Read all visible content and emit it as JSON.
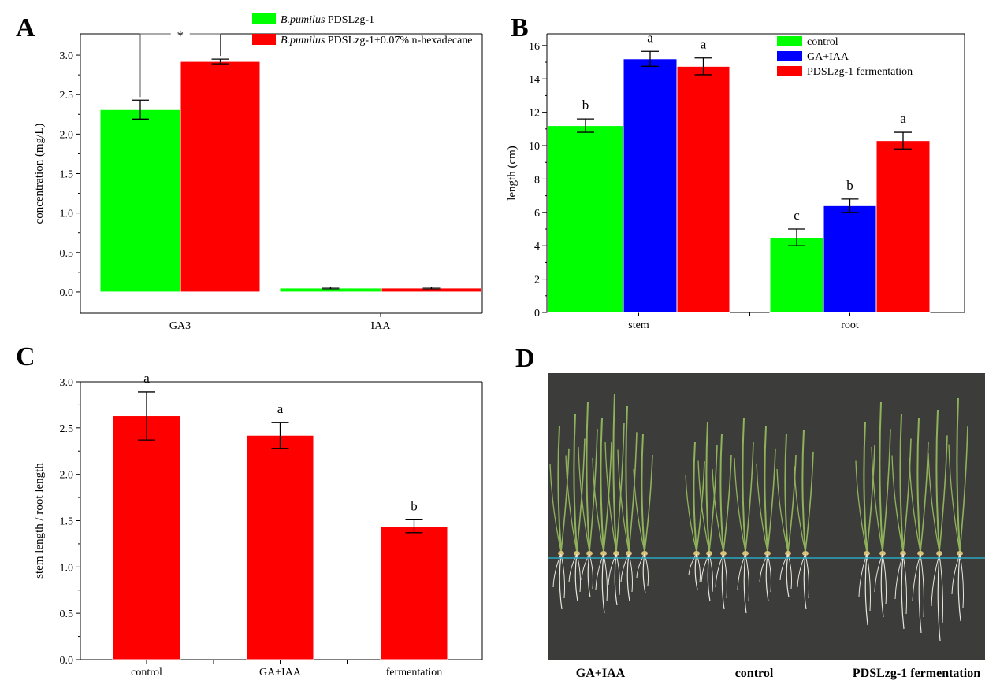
{
  "colors": {
    "green": "#00ff00",
    "blue": "#0000ff",
    "red": "#ff0000",
    "axis": "#000000",
    "photo_bg": "#3c3d3b",
    "photo_line": "#2aa7c2",
    "leaf": "#8fb25a",
    "root": "#e8e6dc"
  },
  "chart_data": [
    {
      "panel": "A",
      "type": "bar",
      "categories": [
        "GA3",
        "IAA"
      ],
      "series": [
        {
          "name_italic": "B.pumilus",
          "name_rest": " PDSLzg-1",
          "color": "#00ff00",
          "values": [
            2.31,
            0.05
          ],
          "errors": [
            0.12,
            0.01
          ]
        },
        {
          "name_italic": "B.pumilus",
          "name_rest": " PDSLzg-1+0.07% n-hexadecane",
          "color": "#ff0000",
          "values": [
            2.92,
            0.05
          ],
          "errors": [
            0.03,
            0.01
          ]
        }
      ],
      "ylabel": "concentration (mg/L)",
      "xlabel": "",
      "ylim": [
        -0.27,
        3.27
      ],
      "yticks": [
        0.0,
        0.5,
        1.0,
        1.5,
        2.0,
        2.5,
        3.0
      ],
      "yticklabels": [
        "0.0",
        "0.5",
        "1.0",
        "1.5",
        "2.0",
        "2.5",
        "3.0"
      ],
      "annotations": [
        {
          "text": "*",
          "between": "GA3 bars"
        }
      ],
      "legend_position": "top-right"
    },
    {
      "panel": "B",
      "type": "bar",
      "categories": [
        "stem",
        "root"
      ],
      "series": [
        {
          "name": "control",
          "color": "#00ff00",
          "values": [
            11.2,
            4.5
          ],
          "errors": [
            0.4,
            0.5
          ],
          "letters": [
            "b",
            "c"
          ]
        },
        {
          "name": "GA+IAA",
          "color": "#0000ff",
          "values": [
            15.2,
            6.4
          ],
          "errors": [
            0.45,
            0.4
          ],
          "letters": [
            "a",
            "b"
          ]
        },
        {
          "name": "PDSLzg-1 fermentation",
          "color": "#ff0000",
          "values": [
            14.75,
            10.3
          ],
          "errors": [
            0.5,
            0.5
          ],
          "letters": [
            "a",
            "a"
          ]
        }
      ],
      "ylabel": "length (cm)",
      "xlabel": "",
      "ylim": [
        0,
        16.7
      ],
      "yticks": [
        0,
        2,
        4,
        6,
        8,
        10,
        12,
        14,
        16
      ],
      "yticklabels": [
        "0",
        "2",
        "4",
        "6",
        "8",
        "10",
        "12",
        "14",
        "16"
      ],
      "legend_position": "top-right"
    },
    {
      "panel": "C",
      "type": "bar",
      "categories": [
        "control",
        "GA+IAA",
        "fermentation"
      ],
      "series": [
        {
          "color": "#ff0000",
          "values": [
            2.63,
            2.42,
            1.44
          ],
          "errors": [
            0.26,
            0.14,
            0.07
          ],
          "letters": [
            "a",
            "a",
            "b"
          ]
        }
      ],
      "ylabel": "stem length / root length",
      "xlabel": "",
      "ylim": [
        0,
        3.0
      ],
      "yticks": [
        0.0,
        0.5,
        1.0,
        1.5,
        2.0,
        2.5,
        3.0
      ],
      "yticklabels": [
        "0.0",
        "0.5",
        "1.0",
        "1.5",
        "2.0",
        "2.5",
        "3.0"
      ]
    }
  ],
  "panel_letters": {
    "a": "A",
    "b": "B",
    "c": "C",
    "d": "D"
  },
  "photo": {
    "captions": [
      "GA+IAA",
      "control",
      "PDSLzg-1 fermentation"
    ]
  }
}
